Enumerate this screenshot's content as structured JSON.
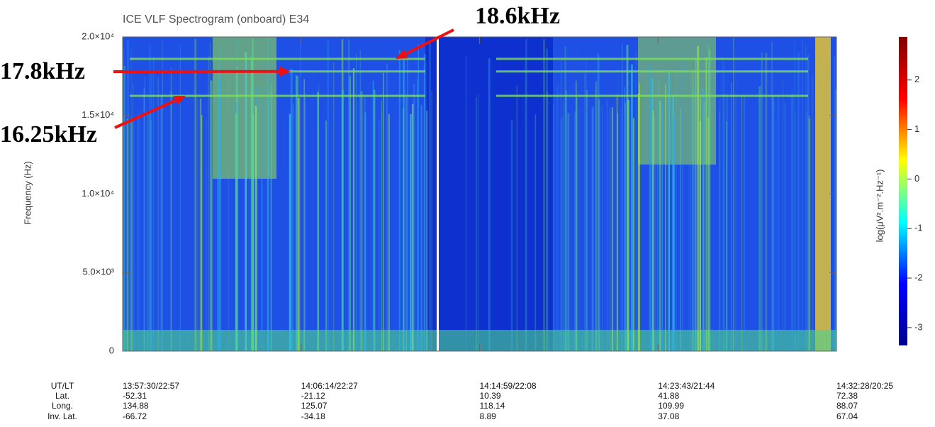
{
  "chart_data": {
    "type": "spectrogram",
    "title": "ICE VLF Spectrogram (onboard) E34",
    "y_label": "Frequency (Hz)",
    "ylim": [
      0,
      20000
    ],
    "yticks": [
      {
        "value": 0,
        "label": "0"
      },
      {
        "value": 5000,
        "label": "5.0×10³"
      },
      {
        "value": 10000,
        "label": "1.0×10⁴"
      },
      {
        "value": 15000,
        "label": "1.5×10⁴"
      },
      {
        "value": 20000,
        "label": "2.0×10⁴"
      }
    ],
    "colorbar_label": "log(μV².m⁻².Hz⁻¹)",
    "zlim": [
      -3.36,
      2.87
    ],
    "zticks": [
      -3,
      -2,
      -1,
      0,
      1,
      2
    ],
    "colormap": [
      "#00008f",
      "#0000ff",
      "#00ffff",
      "#ffff00",
      "#ff0000",
      "#800000"
    ],
    "x_table": {
      "row_labels": [
        "UT/LT",
        "Lat.",
        "Long.",
        "Inv. Lat."
      ],
      "columns": [
        [
          "13:57:30/22:57",
          "-52.31",
          "134.88",
          "-66.72"
        ],
        [
          "14:06:14/22:27",
          "-21.12",
          "125.07",
          "-34.18"
        ],
        [
          "14:14:59/22:08",
          "10.39",
          "118.14",
          "8.89"
        ],
        [
          "14:23:43/21:44",
          "41.88",
          "109.99",
          "37.08"
        ],
        [
          "14:32:28/20:25",
          "72.38",
          "88.07",
          "67.04"
        ]
      ]
    },
    "annotations": [
      {
        "label": "18.6kHz",
        "value": 18600
      },
      {
        "label": "17.8kHz",
        "value": 17800
      },
      {
        "label": "16.25kHz",
        "value": 16250
      }
    ]
  }
}
